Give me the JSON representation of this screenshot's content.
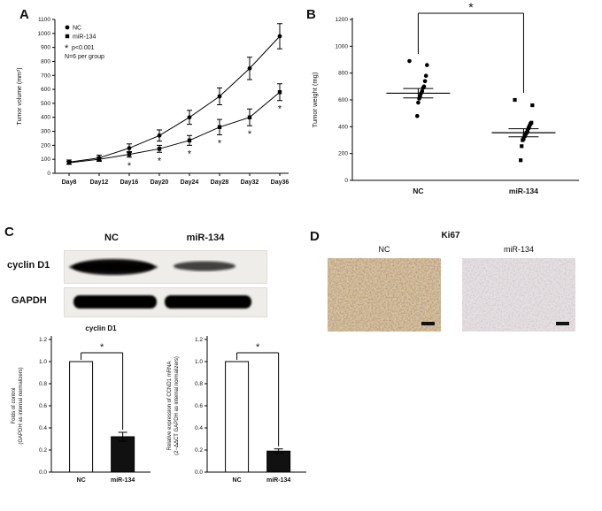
{
  "figure": {
    "panel_a_label": "A",
    "panel_b_label": "B",
    "panel_c_label": "C",
    "panel_d_label": "D"
  },
  "panel_c": {
    "col_headers": [
      "NC",
      "miR-134"
    ],
    "row_labels": [
      "cyclin D1",
      "GAPDH"
    ]
  },
  "panel_d": {
    "title": "Ki67",
    "col_labels": [
      "NC",
      "miR-134"
    ]
  },
  "chart_data": [
    {
      "id": "chart-a",
      "type": "line",
      "ylabel": "Tumor volume (mm³)",
      "categories": [
        "Day8",
        "Day12",
        "Day16",
        "Day20",
        "Day24",
        "Day28",
        "Day32",
        "Day36"
      ],
      "series": [
        {
          "name": "NC",
          "marker": "circle",
          "values": [
            80,
            110,
            180,
            270,
            400,
            550,
            750,
            980
          ],
          "errors": [
            15,
            20,
            30,
            40,
            50,
            60,
            80,
            90
          ]
        },
        {
          "name": "miR-134",
          "marker": "square",
          "values": [
            75,
            100,
            135,
            175,
            235,
            330,
            400,
            580
          ],
          "errors": [
            10,
            15,
            20,
            25,
            35,
            55,
            60,
            60
          ]
        }
      ],
      "ylim": [
        0,
        1100
      ],
      "ytick_step": 100,
      "tick_decimals": 0,
      "star_indices": [
        2,
        3,
        4,
        5,
        6,
        7
      ],
      "legend_notes": [
        "* p<0.001",
        "N=6 per group"
      ]
    },
    {
      "id": "chart-b",
      "type": "scatter",
      "ylabel": "Tumor weight (mg)",
      "groups": [
        {
          "name": "NC",
          "marker": "circle",
          "mean": 650,
          "sem": 35,
          "values": [
            890,
            860,
            780,
            740,
            700,
            690,
            665,
            650,
            630,
            610,
            580,
            480
          ]
        },
        {
          "name": "miR-134",
          "marker": "square",
          "mean": 355,
          "sem": 30,
          "values": [
            600,
            560,
            430,
            420,
            405,
            390,
            370,
            355,
            345,
            330,
            310,
            300,
            255,
            150
          ]
        }
      ],
      "ylim": [
        0,
        1200
      ],
      "ytick_step": 200,
      "tick_decimals": 0,
      "significance": "*"
    },
    {
      "id": "chart-c1",
      "type": "bar",
      "title": "cyclin D1",
      "ylabel_lines": [
        "Folds of control",
        "(GAPDH as internal normalizers)"
      ],
      "categories": [
        "NC",
        "miR-134"
      ],
      "values": [
        1.0,
        0.32
      ],
      "errors": [
        0,
        0.04
      ],
      "bar_colors": [
        "#ffffff",
        "#111111"
      ],
      "ylim": [
        0,
        1.2
      ],
      "ytick_step": 0.2,
      "tick_decimals": 1,
      "significance": "*"
    },
    {
      "id": "chart-c2",
      "type": "bar",
      "title": "",
      "ylabel_lines": [
        "Relative expression of CCND1 mRNA",
        "(2−ΔΔCT GAPDH as internal normalizers)"
      ],
      "categories": [
        "NC",
        "miR-134"
      ],
      "values": [
        1.0,
        0.19
      ],
      "errors": [
        0,
        0.02
      ],
      "bar_colors": [
        "#ffffff",
        "#111111"
      ],
      "ylim": [
        0,
        1.2
      ],
      "ytick_step": 0.2,
      "tick_decimals": 1,
      "significance": "*"
    }
  ]
}
